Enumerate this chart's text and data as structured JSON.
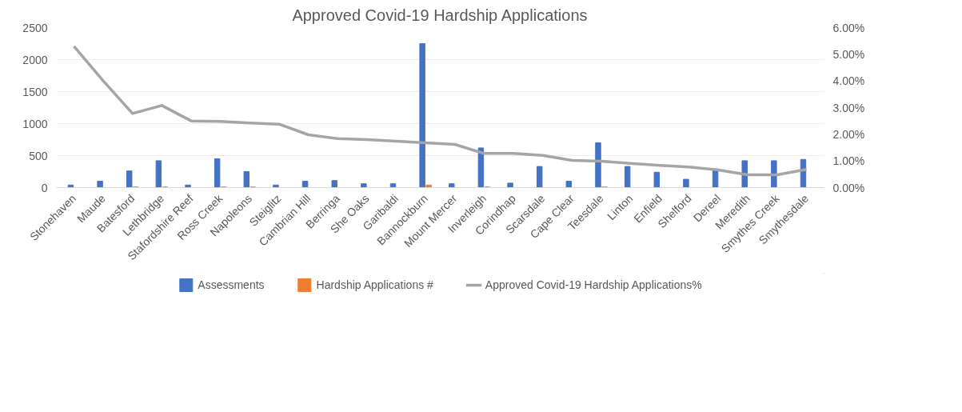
{
  "chart_data": {
    "type": "bar",
    "title": "Approved Covid-19 Hardship Applications",
    "categories": [
      "Stonehaven",
      "Maude",
      "Batesford",
      "Lethbridge",
      "Stafordshire Reef",
      "Ross Creek",
      "Napoleons",
      "Steiglitz",
      "Cambrian Hill",
      "Berringa",
      "She Oaks",
      "Garibaldi",
      "Bannockburn",
      "Mount Mercer",
      "Inverleigh",
      "Corindhap",
      "Scarsdale",
      "Cape Clear",
      "Teesdale",
      "Linton",
      "Enfield",
      "Shelford",
      "Dereel",
      "Meredith",
      "Smythes Creek",
      "Smythesdale"
    ],
    "series": [
      {
        "name": "Assessments",
        "color": "#4472c4",
        "values": [
          40,
          100,
          260,
          420,
          40,
          450,
          250,
          40,
          100,
          110,
          60,
          60,
          2250,
          60,
          620,
          70,
          330,
          100,
          700,
          330,
          240,
          130,
          290,
          420,
          420,
          440
        ]
      },
      {
        "name": "Hardship Applications #",
        "color": "#ed7d31",
        "values": [
          0,
          0,
          10,
          10,
          0,
          10,
          10,
          0,
          0,
          0,
          0,
          0,
          40,
          0,
          10,
          0,
          0,
          0,
          10,
          0,
          0,
          0,
          0,
          0,
          0,
          0
        ]
      },
      {
        "name": "Approved Covid-19 Hardship Applications%",
        "type": "line",
        "axis": "y2",
        "color": "#a5a5a5",
        "values": [
          5.3,
          4.0,
          2.78,
          3.08,
          2.5,
          2.48,
          2.42,
          2.38,
          1.98,
          1.84,
          1.8,
          1.74,
          1.68,
          1.62,
          1.28,
          1.28,
          1.21,
          1.02,
          0.99,
          0.91,
          0.83,
          0.77,
          0.66,
          0.48,
          0.48,
          0.68
        ]
      }
    ],
    "ylim": [
      0,
      2500
    ],
    "yticks": [
      0,
      500,
      1000,
      1500,
      2000,
      2500
    ],
    "y2lim": [
      0,
      6
    ],
    "y2ticks": [
      {
        "value": 0,
        "label": "0.00%"
      },
      {
        "value": 1,
        "label": "1.00%"
      },
      {
        "value": 2,
        "label": "2.00%"
      },
      {
        "value": 3,
        "label": "3.00%"
      },
      {
        "value": 4,
        "label": "4.00%"
      },
      {
        "value": 5,
        "label": "5.00%"
      },
      {
        "value": 6,
        "label": "6.00%"
      }
    ],
    "grid": "y",
    "legend": "bottom",
    "marker": "none",
    "line_style": "solid"
  }
}
